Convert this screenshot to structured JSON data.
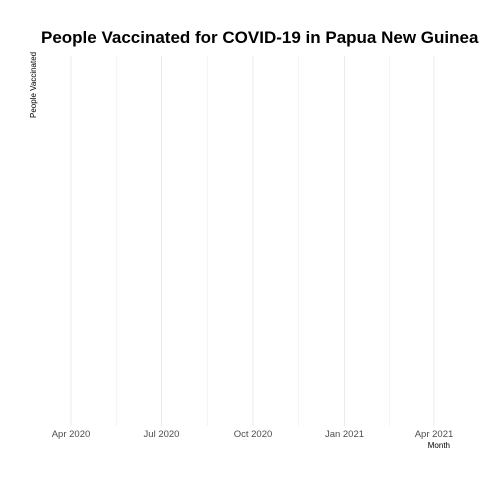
{
  "chart_data": {
    "type": "line",
    "title": "People Vaccinated for COVID-19 in Papua New Guinea",
    "xlabel": "Month",
    "ylabel": "People Vaccinated",
    "x_ticks": [
      "Apr 2020",
      "Jul 2020",
      "Oct 2020",
      "Jan 2021",
      "Apr 2021"
    ],
    "x_tick_dates": [
      "2020-04-01",
      "2020-07-01",
      "2020-10-01",
      "2021-01-01",
      "2021-04-01"
    ],
    "xlim": [
      "2020-04-01",
      "2021-04-01"
    ],
    "series": [],
    "grid": true,
    "legend": "none",
    "colors": {
      "grid": "#ebebeb",
      "tick_text": "#4d4d4d",
      "title_text": "#000000"
    }
  }
}
